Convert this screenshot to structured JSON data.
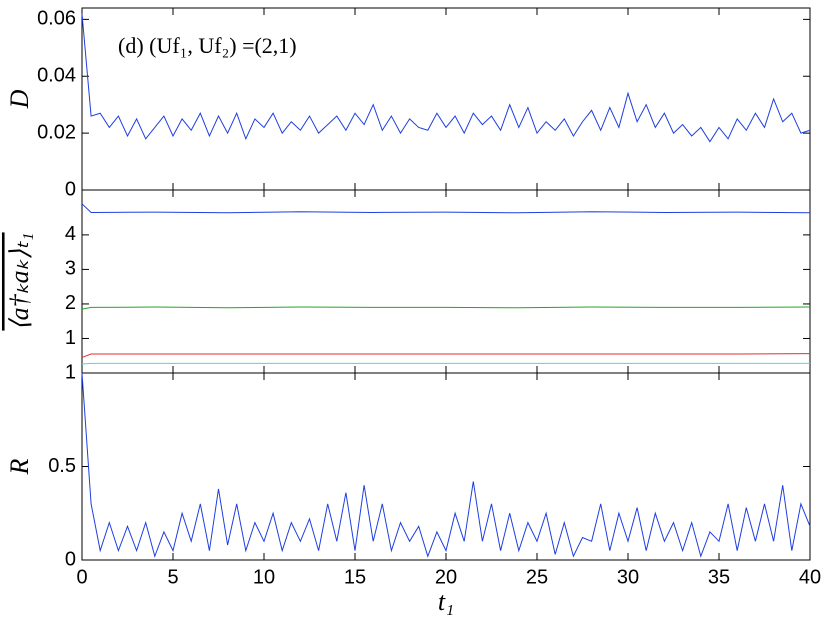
{
  "chart_data": [
    {
      "type": "line",
      "ylabel": "D",
      "annotation": "(d)  (Uf₁, Uf₂) =(2,1)",
      "color": "#1f3fe0",
      "xlim": [
        0,
        40
      ],
      "ylim": [
        0,
        0.064
      ],
      "yticks": [
        0,
        0.02,
        0.04,
        0.06
      ],
      "x": [
        0,
        0.5,
        1,
        1.5,
        2,
        2.5,
        3,
        3.5,
        4,
        4.5,
        5,
        5.5,
        6,
        6.5,
        7,
        7.5,
        8,
        8.5,
        9,
        9.5,
        10,
        10.5,
        11,
        11.5,
        12,
        12.5,
        13,
        13.5,
        14,
        14.5,
        15,
        15.5,
        16,
        16.5,
        17,
        17.5,
        18,
        18.5,
        19,
        19.5,
        20,
        20.5,
        21,
        21.5,
        22,
        22.5,
        23,
        23.5,
        24,
        24.5,
        25,
        25.5,
        26,
        26.5,
        27,
        27.5,
        28,
        28.5,
        29,
        29.5,
        30,
        30.5,
        31,
        31.5,
        32,
        32.5,
        33,
        33.5,
        34,
        34.5,
        35,
        35.5,
        36,
        36.5,
        37,
        37.5,
        38,
        38.5,
        39,
        39.5,
        40
      ],
      "values": [
        0.062,
        0.026,
        0.027,
        0.022,
        0.026,
        0.019,
        0.025,
        0.018,
        0.022,
        0.026,
        0.019,
        0.025,
        0.021,
        0.027,
        0.019,
        0.026,
        0.02,
        0.027,
        0.018,
        0.025,
        0.022,
        0.027,
        0.02,
        0.024,
        0.021,
        0.026,
        0.02,
        0.023,
        0.026,
        0.021,
        0.027,
        0.023,
        0.03,
        0.021,
        0.026,
        0.02,
        0.025,
        0.022,
        0.021,
        0.027,
        0.022,
        0.026,
        0.02,
        0.027,
        0.023,
        0.026,
        0.021,
        0.03,
        0.022,
        0.029,
        0.02,
        0.024,
        0.021,
        0.025,
        0.019,
        0.024,
        0.028,
        0.021,
        0.029,
        0.022,
        0.034,
        0.024,
        0.03,
        0.022,
        0.027,
        0.02,
        0.023,
        0.019,
        0.022,
        0.017,
        0.022,
        0.018,
        0.025,
        0.021,
        0.027,
        0.022,
        0.032,
        0.024,
        0.027,
        0.02,
        0.021
      ]
    },
    {
      "type": "line",
      "ylabel": "⟨a†ₖaₖ⟩ₜ₁",
      "xlim": [
        0,
        40
      ],
      "ylim": [
        0,
        5.3
      ],
      "yticks": [
        1,
        2,
        3,
        4
      ],
      "x": [
        0,
        0.5,
        4,
        8,
        12,
        16,
        20,
        24,
        28,
        32,
        36,
        40
      ],
      "series": [
        {
          "color": "#1f3fe0",
          "values": [
            4.9,
            4.65,
            4.66,
            4.64,
            4.67,
            4.65,
            4.66,
            4.64,
            4.67,
            4.65,
            4.66,
            4.64
          ]
        },
        {
          "color": "#20a820",
          "values": [
            1.85,
            1.9,
            1.91,
            1.89,
            1.91,
            1.9,
            1.9,
            1.89,
            1.91,
            1.9,
            1.9,
            1.91
          ]
        },
        {
          "color": "#e03030",
          "values": [
            0.45,
            0.55,
            0.55,
            0.55,
            0.55,
            0.55,
            0.55,
            0.55,
            0.55,
            0.55,
            0.55,
            0.56
          ]
        },
        {
          "color": "#40e0d0",
          "values": [
            0.26,
            0.28,
            0.28,
            0.28,
            0.28,
            0.28,
            0.28,
            0.28,
            0.28,
            0.28,
            0.28,
            0.28
          ]
        }
      ]
    },
    {
      "type": "line",
      "ylabel": "R",
      "xlabel": "t₁",
      "color": "#1f3fe0",
      "xlim": [
        0,
        40
      ],
      "xticks": [
        0,
        5,
        10,
        15,
        20,
        25,
        30,
        35,
        40
      ],
      "ylim": [
        0,
        1
      ],
      "yticks": [
        0,
        0.5,
        1
      ],
      "x": [
        0,
        0.5,
        1,
        1.5,
        2,
        2.5,
        3,
        3.5,
        4,
        4.5,
        5,
        5.5,
        6,
        6.5,
        7,
        7.5,
        8,
        8.5,
        9,
        9.5,
        10,
        10.5,
        11,
        11.5,
        12,
        12.5,
        13,
        13.5,
        14,
        14.5,
        15,
        15.5,
        16,
        16.5,
        17,
        17.5,
        18,
        18.5,
        19,
        19.5,
        20,
        20.5,
        21,
        21.5,
        22,
        22.5,
        23,
        23.5,
        24,
        24.5,
        25,
        25.5,
        26,
        26.5,
        27,
        27.5,
        28,
        28.5,
        29,
        29.5,
        30,
        30.5,
        31,
        31.5,
        32,
        32.5,
        33,
        33.5,
        34,
        34.5,
        35,
        35.5,
        36,
        36.5,
        37,
        37.5,
        38,
        38.5,
        39,
        39.5,
        40
      ],
      "values": [
        1.0,
        0.3,
        0.05,
        0.2,
        0.05,
        0.18,
        0.05,
        0.2,
        0.02,
        0.15,
        0.05,
        0.25,
        0.1,
        0.3,
        0.05,
        0.38,
        0.08,
        0.3,
        0.05,
        0.2,
        0.1,
        0.25,
        0.05,
        0.2,
        0.1,
        0.22,
        0.05,
        0.3,
        0.1,
        0.36,
        0.05,
        0.4,
        0.1,
        0.3,
        0.05,
        0.2,
        0.1,
        0.18,
        0.02,
        0.15,
        0.05,
        0.25,
        0.1,
        0.42,
        0.1,
        0.3,
        0.05,
        0.25,
        0.05,
        0.2,
        0.1,
        0.25,
        0.03,
        0.2,
        0.02,
        0.12,
        0.1,
        0.3,
        0.05,
        0.25,
        0.1,
        0.28,
        0.05,
        0.25,
        0.1,
        0.2,
        0.05,
        0.2,
        0.02,
        0.15,
        0.1,
        0.3,
        0.05,
        0.28,
        0.1,
        0.3,
        0.1,
        0.4,
        0.05,
        0.3,
        0.18
      ]
    }
  ]
}
